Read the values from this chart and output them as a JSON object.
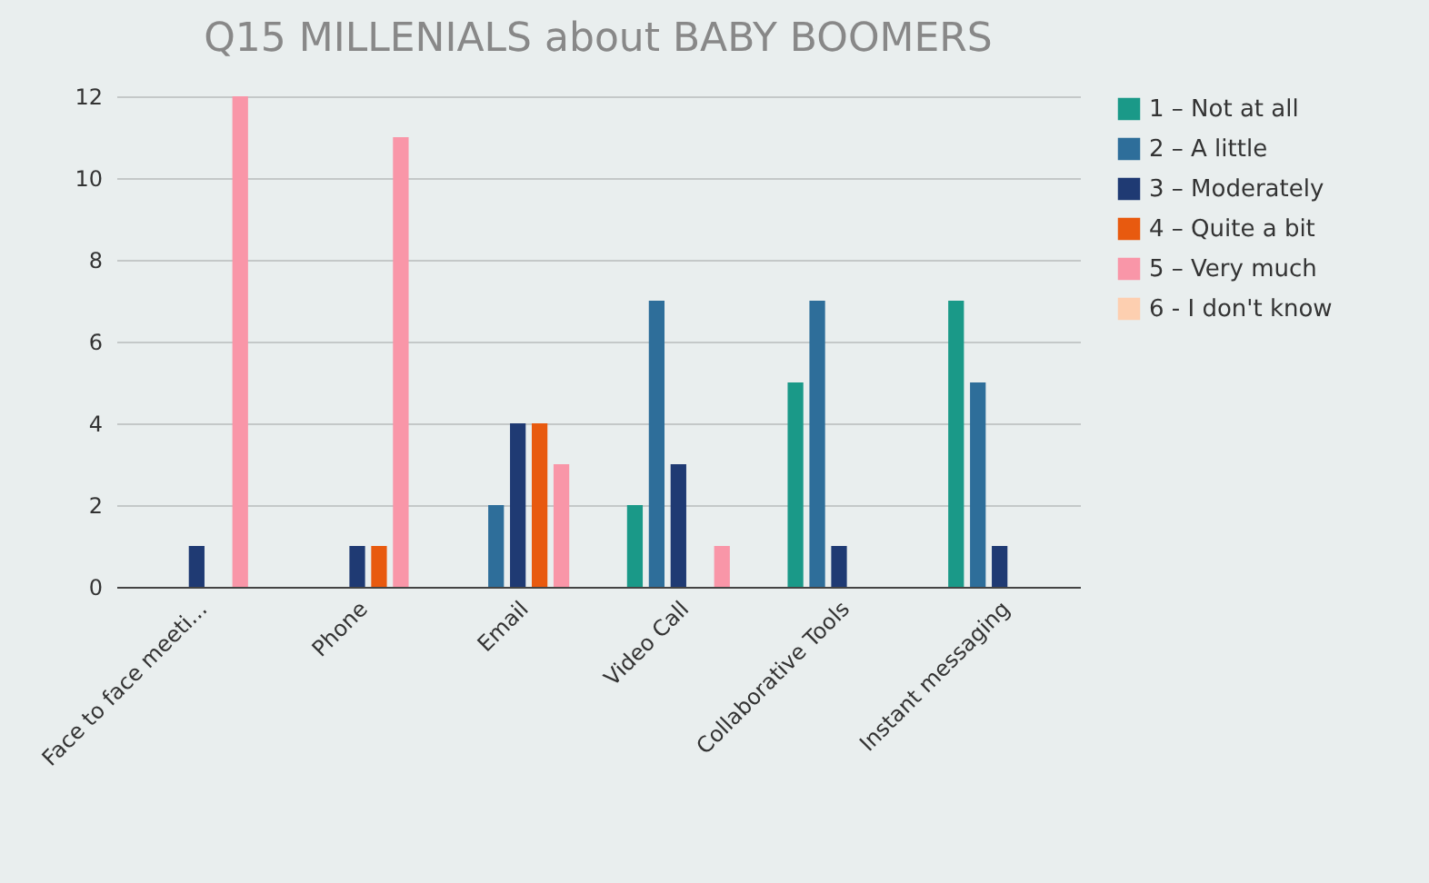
{
  "chart_data": {
    "type": "bar",
    "title": "Q15 MILLENIALS about BABY BOOMERS",
    "categories": [
      "Face to face meeti...",
      "Phone",
      "Email",
      "Video Call",
      "Collaborative Tools",
      "Instant messaging"
    ],
    "series": [
      {
        "name": "1 – Not at all",
        "color": "#1a9988",
        "values": [
          0,
          0,
          0,
          2,
          5,
          7
        ]
      },
      {
        "name": "2 – A little",
        "color": "#2e6e9a",
        "values": [
          0,
          0,
          2,
          7,
          7,
          5
        ]
      },
      {
        "name": "3 – Moderately",
        "color": "#1f3a73",
        "values": [
          1,
          1,
          4,
          3,
          1,
          1
        ]
      },
      {
        "name": "4 – Quite a bit",
        "color": "#e85a0f",
        "values": [
          0,
          1,
          4,
          0,
          0,
          0
        ]
      },
      {
        "name": "5 – Very much",
        "color": "#f996a8",
        "values": [
          12,
          11,
          3,
          1,
          0,
          0
        ]
      },
      {
        "name": "6 - I don't know",
        "color": "#fdcfb0",
        "values": [
          0,
          0,
          0,
          0,
          0,
          0
        ]
      }
    ],
    "ylim": [
      0,
      12
    ],
    "yticks": [
      0,
      2,
      4,
      6,
      8,
      10,
      12
    ],
    "grid": "y",
    "legend": "top right"
  }
}
